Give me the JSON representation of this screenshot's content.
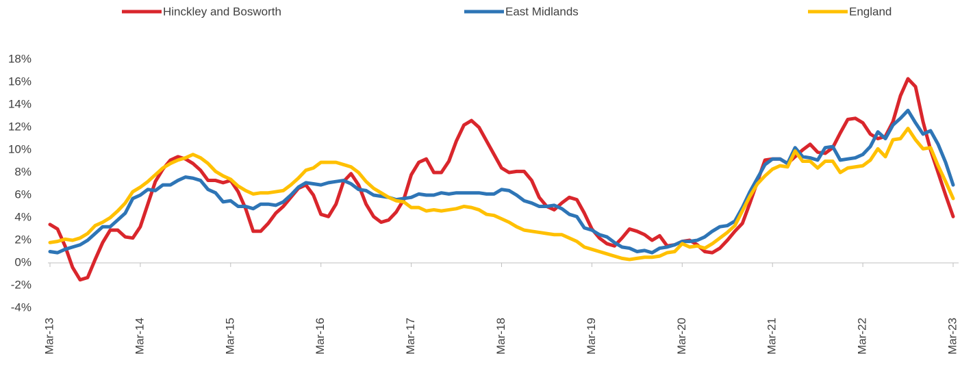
{
  "chart_data": {
    "type": "line",
    "categories": [
      "Mar-13",
      null,
      null,
      null,
      null,
      null,
      null,
      null,
      null,
      null,
      null,
      null,
      "Mar-14",
      null,
      null,
      null,
      null,
      null,
      null,
      null,
      null,
      null,
      null,
      null,
      "Mar-15",
      null,
      null,
      null,
      null,
      null,
      null,
      null,
      null,
      null,
      null,
      null,
      "Mar-16",
      null,
      null,
      null,
      null,
      null,
      null,
      null,
      null,
      null,
      null,
      null,
      "Mar-17",
      null,
      null,
      null,
      null,
      null,
      null,
      null,
      null,
      null,
      null,
      null,
      "Mar-18",
      null,
      null,
      null,
      null,
      null,
      null,
      null,
      null,
      null,
      null,
      null,
      "Mar-19",
      null,
      null,
      null,
      null,
      null,
      null,
      null,
      null,
      null,
      null,
      null,
      "Mar-20",
      null,
      null,
      null,
      null,
      null,
      null,
      null,
      null,
      null,
      null,
      null,
      "Mar-21",
      null,
      null,
      null,
      null,
      null,
      null,
      null,
      null,
      null,
      null,
      null,
      "Mar-22",
      null,
      null,
      null,
      null,
      null,
      null,
      null,
      null,
      null,
      null,
      null,
      "Mar-23"
    ],
    "series": [
      {
        "name": "Hinckley and Bosworth",
        "color": "#d9262c",
        "values": [
          3.4,
          3.0,
          1.5,
          -0.4,
          -1.5,
          -1.3,
          0.3,
          1.8,
          2.9,
          2.9,
          2.3,
          2.2,
          3.2,
          5.2,
          7.2,
          8.3,
          9.1,
          9.4,
          9.2,
          8.8,
          8.2,
          7.3,
          7.3,
          7.1,
          7.3,
          6.3,
          4.8,
          2.8,
          2.8,
          3.5,
          4.4,
          5.0,
          5.8,
          6.6,
          6.9,
          6.0,
          4.3,
          4.1,
          5.2,
          7.2,
          7.9,
          6.9,
          5.2,
          4.1,
          3.6,
          3.8,
          4.5,
          5.6,
          7.8,
          8.9,
          9.2,
          8.0,
          8.0,
          9.0,
          10.8,
          12.2,
          12.6,
          12.0,
          10.8,
          9.6,
          8.4,
          8.0,
          8.1,
          8.1,
          7.3,
          5.8,
          5.0,
          4.7,
          5.3,
          5.8,
          5.6,
          4.4,
          3.0,
          2.2,
          1.7,
          1.5,
          2.2,
          3.0,
          2.8,
          2.5,
          2.0,
          2.4,
          1.5,
          1.6,
          1.9,
          2.0,
          1.6,
          1.0,
          0.9,
          1.3,
          2.0,
          2.8,
          3.5,
          5.3,
          7.2,
          9.1,
          9.2,
          9.2,
          8.8,
          9.4,
          10.0,
          10.5,
          9.8,
          9.7,
          10.2,
          11.5,
          12.7,
          12.8,
          12.4,
          11.4,
          11.0,
          11.2,
          12.5,
          14.8,
          16.3,
          15.6,
          12.5,
          10.0,
          8.0,
          6.0,
          4.1
        ]
      },
      {
        "name": "East Midlands",
        "color": "#2e75b6",
        "values": [
          1.0,
          0.9,
          1.2,
          1.4,
          1.6,
          2.0,
          2.6,
          3.2,
          3.2,
          3.8,
          4.4,
          5.7,
          6.0,
          6.5,
          6.4,
          6.9,
          6.9,
          7.3,
          7.6,
          7.5,
          7.3,
          6.5,
          6.2,
          5.4,
          5.5,
          5.0,
          5.0,
          4.8,
          5.2,
          5.2,
          5.1,
          5.4,
          6.0,
          6.7,
          7.1,
          7.0,
          6.9,
          7.1,
          7.2,
          7.3,
          7.0,
          6.5,
          6.4,
          6.0,
          5.9,
          5.8,
          5.6,
          5.7,
          5.8,
          6.1,
          6.0,
          6.0,
          6.2,
          6.1,
          6.2,
          6.2,
          6.2,
          6.2,
          6.1,
          6.1,
          6.5,
          6.4,
          6.0,
          5.5,
          5.3,
          5.0,
          5.0,
          5.1,
          4.8,
          4.3,
          4.1,
          3.1,
          2.9,
          2.5,
          2.3,
          1.8,
          1.4,
          1.3,
          1.0,
          1.1,
          0.9,
          1.3,
          1.4,
          1.6,
          1.9,
          1.9,
          2.0,
          2.3,
          2.8,
          3.2,
          3.3,
          3.7,
          4.9,
          6.3,
          7.5,
          8.7,
          9.2,
          9.2,
          8.8,
          10.2,
          9.4,
          9.3,
          9.1,
          10.2,
          10.3,
          9.1,
          9.2,
          9.3,
          9.6,
          10.3,
          11.6,
          11.0,
          12.2,
          12.8,
          13.5,
          12.4,
          11.4,
          11.7,
          10.5,
          8.9,
          6.9
        ]
      },
      {
        "name": "England",
        "color": "#ffc000",
        "values": [
          1.8,
          1.9,
          2.1,
          2.0,
          2.2,
          2.6,
          3.3,
          3.6,
          4.0,
          4.6,
          5.3,
          6.3,
          6.7,
          7.2,
          7.8,
          8.4,
          8.8,
          9.1,
          9.3,
          9.6,
          9.3,
          8.8,
          8.1,
          7.7,
          7.4,
          6.8,
          6.4,
          6.1,
          6.2,
          6.2,
          6.3,
          6.4,
          6.9,
          7.5,
          8.2,
          8.4,
          8.9,
          8.9,
          8.9,
          8.7,
          8.5,
          8.0,
          7.2,
          6.6,
          6.2,
          5.8,
          5.5,
          5.4,
          4.9,
          4.9,
          4.6,
          4.7,
          4.6,
          4.7,
          4.8,
          5.0,
          4.9,
          4.7,
          4.3,
          4.2,
          3.9,
          3.6,
          3.2,
          2.9,
          2.8,
          2.7,
          2.6,
          2.5,
          2.5,
          2.2,
          1.9,
          1.4,
          1.2,
          1.0,
          0.8,
          0.6,
          0.4,
          0.3,
          0.4,
          0.5,
          0.5,
          0.6,
          0.9,
          1.0,
          1.7,
          1.4,
          1.5,
          1.3,
          1.7,
          2.2,
          2.7,
          3.3,
          4.6,
          5.9,
          7.0,
          7.7,
          8.3,
          8.6,
          8.5,
          9.9,
          9.0,
          9.0,
          8.4,
          9.0,
          9.0,
          8.0,
          8.4,
          8.5,
          8.6,
          9.1,
          10.1,
          9.4,
          10.9,
          11.0,
          11.9,
          10.9,
          10.1,
          10.2,
          8.6,
          7.2,
          5.7
        ]
      }
    ],
    "ylim": [
      -4,
      18
    ],
    "yticks": [
      {
        "value": -4,
        "label": "-4%"
      },
      {
        "value": -2,
        "label": "-2%"
      },
      {
        "value": 0,
        "label": "0%"
      },
      {
        "value": 2,
        "label": "2%"
      },
      {
        "value": 4,
        "label": "4%"
      },
      {
        "value": 6,
        "label": "6%"
      },
      {
        "value": 8,
        "label": "8%"
      },
      {
        "value": 10,
        "label": "10%"
      },
      {
        "value": 12,
        "label": "12%"
      },
      {
        "value": 14,
        "label": "14%"
      },
      {
        "value": 16,
        "label": "16%"
      },
      {
        "value": 18,
        "label": "18%"
      }
    ],
    "grid": false,
    "legend": "top"
  }
}
